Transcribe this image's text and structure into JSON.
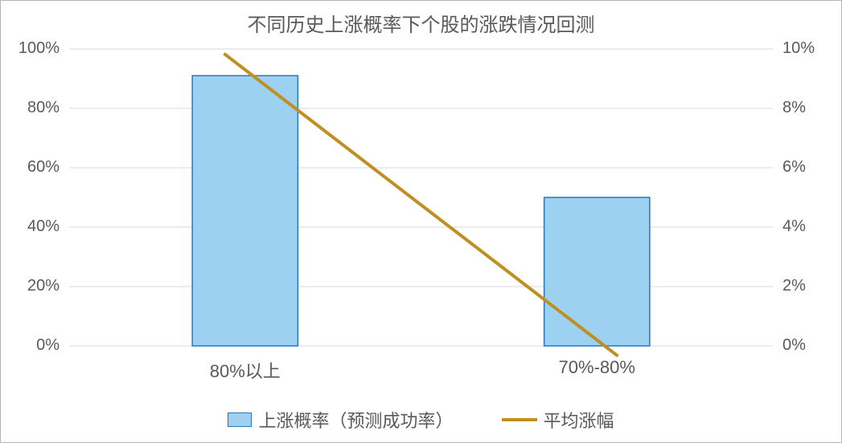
{
  "chart": {
    "type": "bar+line",
    "title": "不同历史上涨概率下个股的涨跌情况回测",
    "title_fontsize": 24,
    "label_fontsize": 20,
    "legend_fontsize": 22,
    "text_color": "#595959",
    "background_color": "#ffffff",
    "frame_border_color": "#b4b4b4",
    "categories": [
      "80%以上",
      "70%-80%"
    ],
    "bars": {
      "label": "上涨概率（预测成功率）",
      "values": [
        91,
        50
      ],
      "fill_color": "#9dd1f1",
      "border_color": "#2e75b6",
      "bar_width_frac": 0.3,
      "axis": "left"
    },
    "line": {
      "label": "平均涨幅",
      "values": [
        9.3,
        0.2
      ],
      "color": "#bf8f22",
      "width": 4,
      "axis": "right"
    },
    "left_axis": {
      "min": 0,
      "max": 100,
      "ticks": [
        0,
        20,
        40,
        60,
        80,
        100
      ],
      "tick_labels": [
        "0%",
        "20%",
        "40%",
        "60%",
        "80%",
        "100%"
      ],
      "grid": true,
      "grid_color": "#d9d9d9"
    },
    "right_axis": {
      "min": 0,
      "max": 10,
      "ticks": [
        0,
        2,
        4,
        6,
        8,
        10
      ],
      "tick_labels": [
        "0%",
        "2%",
        "4%",
        "6%",
        "8%",
        "10%"
      ]
    }
  }
}
